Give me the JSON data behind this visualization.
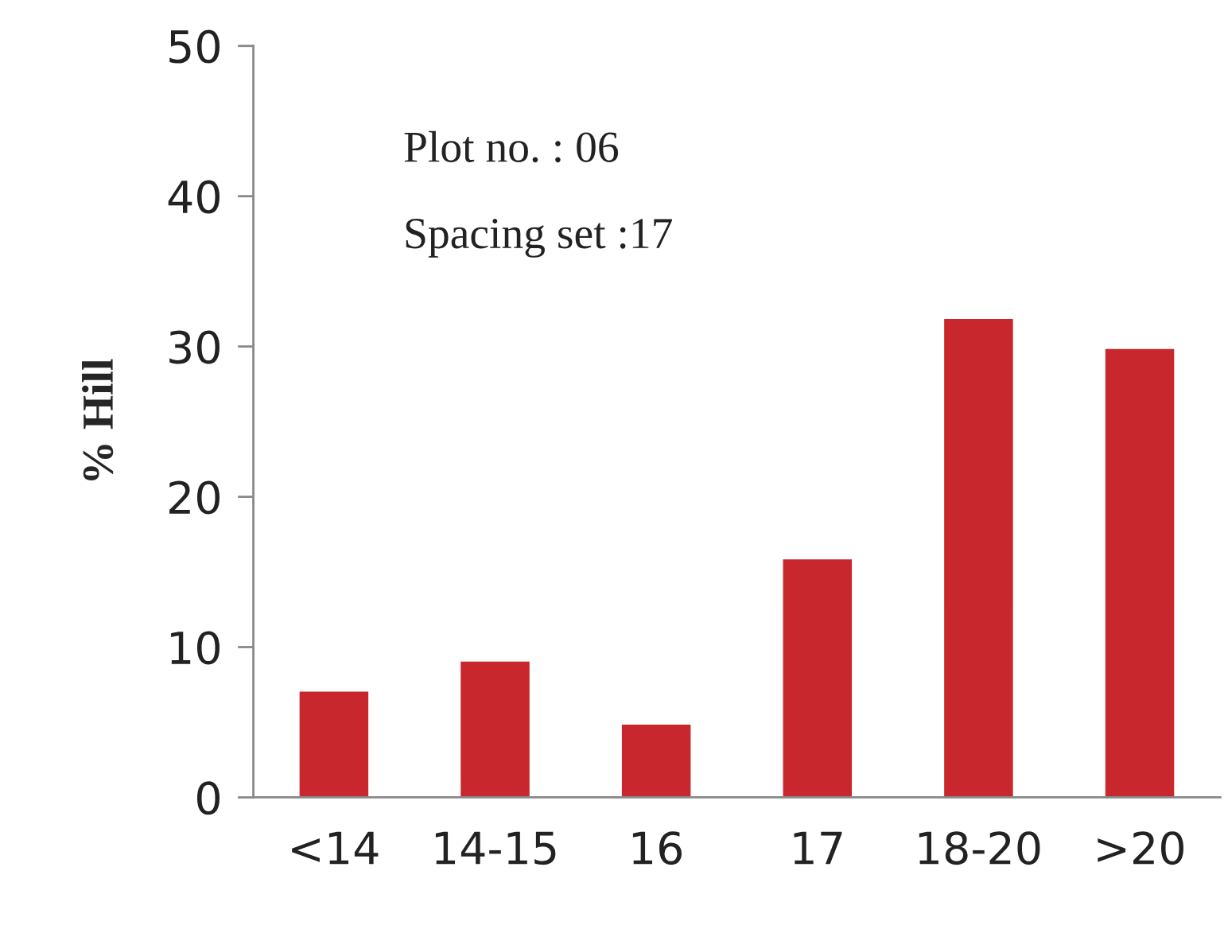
{
  "chart_data": {
    "type": "bar",
    "ylabel": "% Hill",
    "categories": [
      "<14",
      "14-15",
      "16",
      "17",
      "18-20",
      ">20"
    ],
    "values": [
      7,
      9,
      4.8,
      15.8,
      31.8,
      29.8
    ],
    "color": "#c8282d",
    "ylim": [
      0,
      50
    ],
    "yticks": [
      0,
      10,
      20,
      30,
      40,
      50
    ],
    "grid": false,
    "annotations": [
      "Plot no. : 06",
      "Spacing set :17"
    ]
  }
}
